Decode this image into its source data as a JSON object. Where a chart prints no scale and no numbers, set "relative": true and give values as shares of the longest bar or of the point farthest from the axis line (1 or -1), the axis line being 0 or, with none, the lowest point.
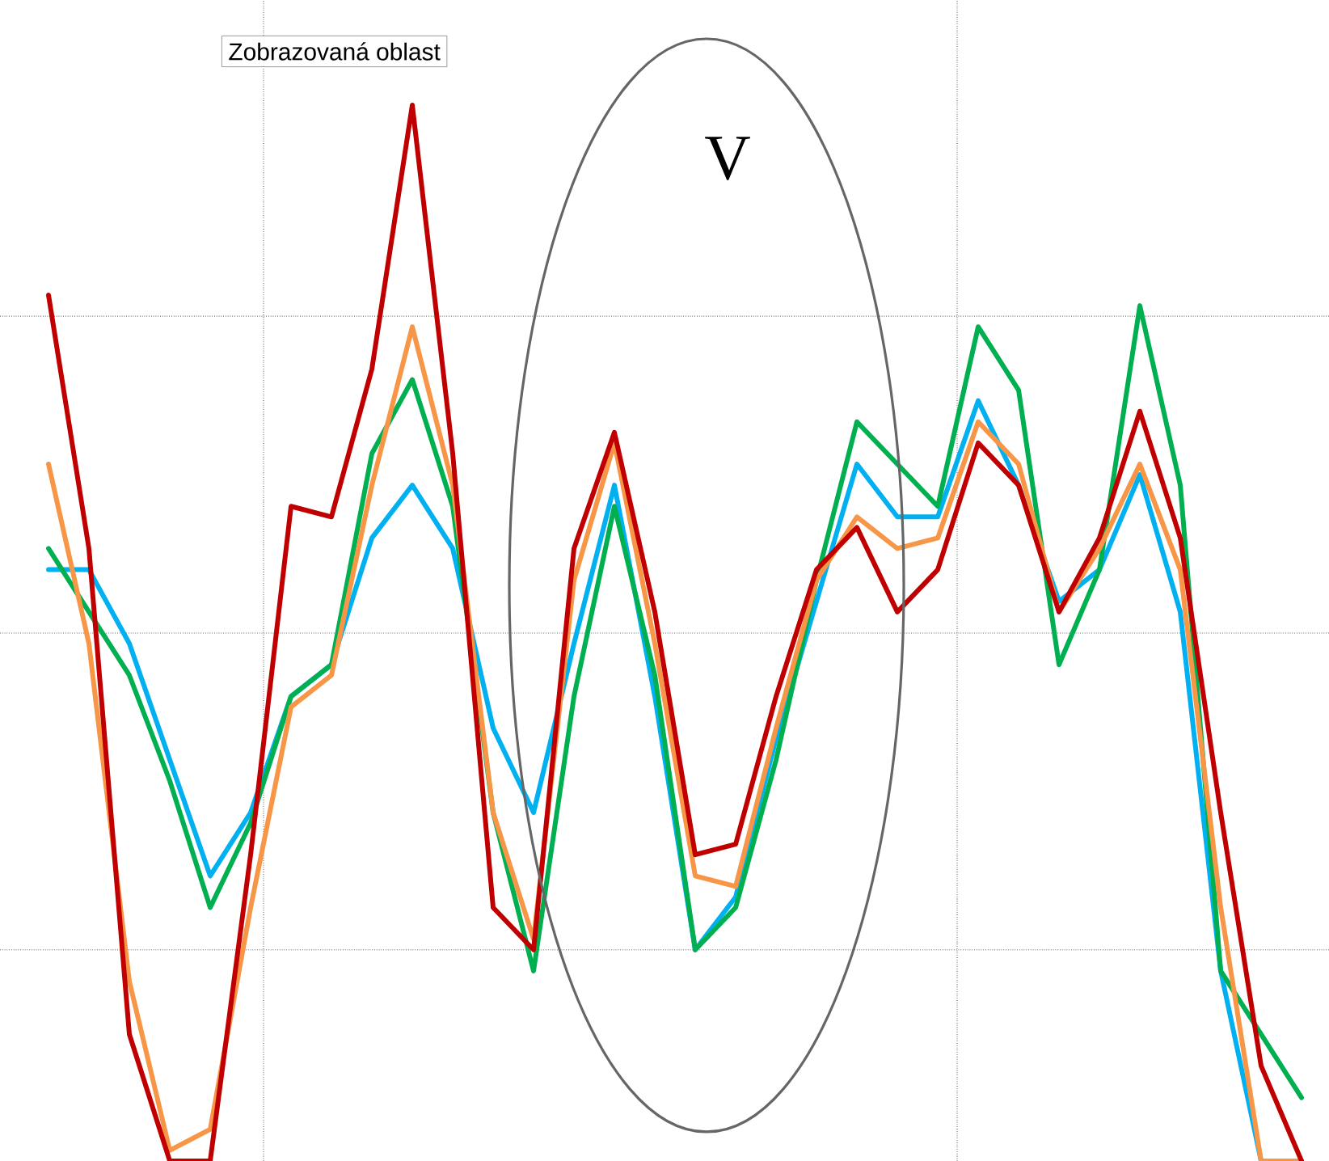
{
  "chart_data": {
    "type": "line",
    "relative": true,
    "grid": true,
    "categories": [
      null,
      null,
      null,
      null,
      null,
      null,
      null,
      null,
      null,
      null,
      null,
      null,
      null,
      null,
      null,
      null,
      null,
      null,
      null,
      null,
      null,
      null,
      null,
      null,
      null,
      null,
      null,
      null,
      null,
      null,
      null,
      null,
      null
    ],
    "series": [
      {
        "color": "#00b0f0",
        "values": [
          null,
          0.56,
          0.56,
          0.49,
          0.38,
          0.27,
          0.33,
          0.44,
          0.47,
          0.59,
          0.64,
          0.58,
          0.41,
          0.33,
          0.49,
          0.64,
          0.44,
          0.2,
          0.25,
          0.4,
          0.53,
          0.66,
          0.61,
          0.61,
          0.72,
          0.64,
          0.53,
          0.56,
          0.65,
          0.52,
          0.18,
          0,
          0
        ]
      },
      {
        "color": "#00b050",
        "values": [
          null,
          0.58,
          0.52,
          0.46,
          0.36,
          0.24,
          0.32,
          0.44,
          0.47,
          0.67,
          0.74,
          0.62,
          0.33,
          0.18,
          0.44,
          0.62,
          0.46,
          0.2,
          0.24,
          0.38,
          0.55,
          0.7,
          0.66,
          0.62,
          0.79,
          0.73,
          0.47,
          0.56,
          0.81,
          0.64,
          0.18,
          0.12,
          0.06
        ]
      },
      {
        "color": "#f79646",
        "values": [
          null,
          0.66,
          0.49,
          0.17,
          0.01,
          0.03,
          0.24,
          0.43,
          0.46,
          0.64,
          0.79,
          0.64,
          0.33,
          0.21,
          0.55,
          0.68,
          0.49,
          0.27,
          0.26,
          0.41,
          0.55,
          0.61,
          0.58,
          0.59,
          0.7,
          0.66,
          0.52,
          0.58,
          0.66,
          0.56,
          0.24,
          0,
          0
        ]
      },
      {
        "color": "#c00000",
        "values": [
          null,
          0.82,
          0.58,
          0.12,
          0,
          0,
          0.29,
          0.62,
          0.61,
          0.75,
          1,
          0.67,
          0.24,
          0.2,
          0.58,
          0.69,
          0.52,
          0.29,
          0.3,
          0.44,
          0.56,
          0.6,
          0.52,
          0.56,
          0.68,
          0.64,
          0.52,
          0.59,
          0.71,
          0.59,
          0.33,
          0.09,
          0
        ]
      }
    ],
    "annotations": [
      "Zobrazovaná oblast",
      "V"
    ]
  }
}
